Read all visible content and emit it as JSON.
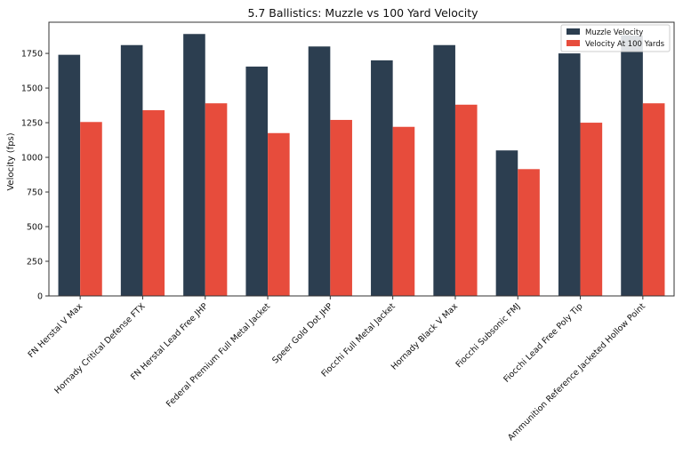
{
  "chart_data": {
    "type": "bar",
    "title": "5.7 Ballistics: Muzzle vs 100 Yard Velocity",
    "xlabel": "",
    "ylabel": "Velocity (fps)",
    "ylim": [
      0,
      1975
    ],
    "yticks": [
      0,
      250,
      500,
      750,
      1000,
      1250,
      1500,
      1750
    ],
    "grid": false,
    "legend_position": "top-right",
    "categories": [
      "FN Herstal V Max",
      "Hornady Critical Defense FTX",
      "FN Herstal Lead Free JHP",
      "Federal Premium Full Metal Jacket",
      "Speer Gold Dot JHP",
      "Fiocchi Full Metal Jacket",
      "Hornady Black V Max",
      "Fiocchi Subsonic FMJ",
      "Fiocchi Lead Free Poly Tip",
      "Ammunition Reference Jacketed Hollow Point"
    ],
    "series": [
      {
        "name": "Muzzle Velocity",
        "color": "#2c3e50",
        "values": [
          1740,
          1810,
          1890,
          1655,
          1800,
          1700,
          1810,
          1050,
          1750,
          1880
        ]
      },
      {
        "name": "Velocity At 100 Yards",
        "color": "#e74c3c",
        "values": [
          1255,
          1340,
          1390,
          1175,
          1270,
          1220,
          1380,
          915,
          1250,
          1390
        ]
      }
    ]
  }
}
